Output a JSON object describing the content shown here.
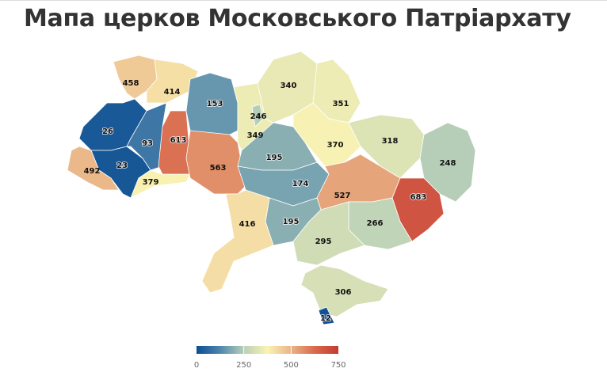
{
  "title": "Мапа церков Московського Патріархату",
  "chart_data": {
    "type": "choropleth",
    "title": "Мапа церков Московського Патріархату",
    "regions": [
      {
        "id": "volyn",
        "value": 458
      },
      {
        "id": "rivne",
        "value": 414
      },
      {
        "id": "lviv",
        "value": 26
      },
      {
        "id": "ternopil",
        "value": 93
      },
      {
        "id": "ivano-frankivsk",
        "value": 23
      },
      {
        "id": "zakarpattia",
        "value": 492
      },
      {
        "id": "chernivtsi",
        "value": 379
      },
      {
        "id": "khmelnytskyi",
        "value": 613
      },
      {
        "id": "zhytomyr",
        "value": 153
      },
      {
        "id": "vinnytsia",
        "value": 563
      },
      {
        "id": "kyiv-oblast",
        "value": 349
      },
      {
        "id": "kyiv-city",
        "value": 246
      },
      {
        "id": "chernihiv",
        "value": 340
      },
      {
        "id": "sumy",
        "value": 351
      },
      {
        "id": "poltava",
        "value": 370
      },
      {
        "id": "cherkasy",
        "value": 195
      },
      {
        "id": "kirovohrad",
        "value": 174
      },
      {
        "id": "kharkiv",
        "value": 318
      },
      {
        "id": "luhansk",
        "value": 248
      },
      {
        "id": "dnipropetrovsk",
        "value": 527
      },
      {
        "id": "donetsk",
        "value": 683
      },
      {
        "id": "zaporizhzhia",
        "value": 266
      },
      {
        "id": "mykolaiv",
        "value": 195
      },
      {
        "id": "odesa",
        "value": 416
      },
      {
        "id": "kherson",
        "value": 295
      },
      {
        "id": "crimea",
        "value": 306
      },
      {
        "id": "sevastopol",
        "value": 12
      }
    ],
    "color_scale": {
      "range": [
        0,
        750
      ],
      "ticks": [
        "0",
        "250",
        "500",
        "750"
      ],
      "stops": [
        {
          "value": 0,
          "color": "#0b4d91"
        },
        {
          "value": 125,
          "color": "#4f86ad"
        },
        {
          "value": 250,
          "color": "#b8cfb8"
        },
        {
          "value": 375,
          "color": "#faf3b3"
        },
        {
          "value": 500,
          "color": "#eab487"
        },
        {
          "value": 625,
          "color": "#d86a4c"
        },
        {
          "value": 750,
          "color": "#c43a34"
        }
      ]
    }
  }
}
